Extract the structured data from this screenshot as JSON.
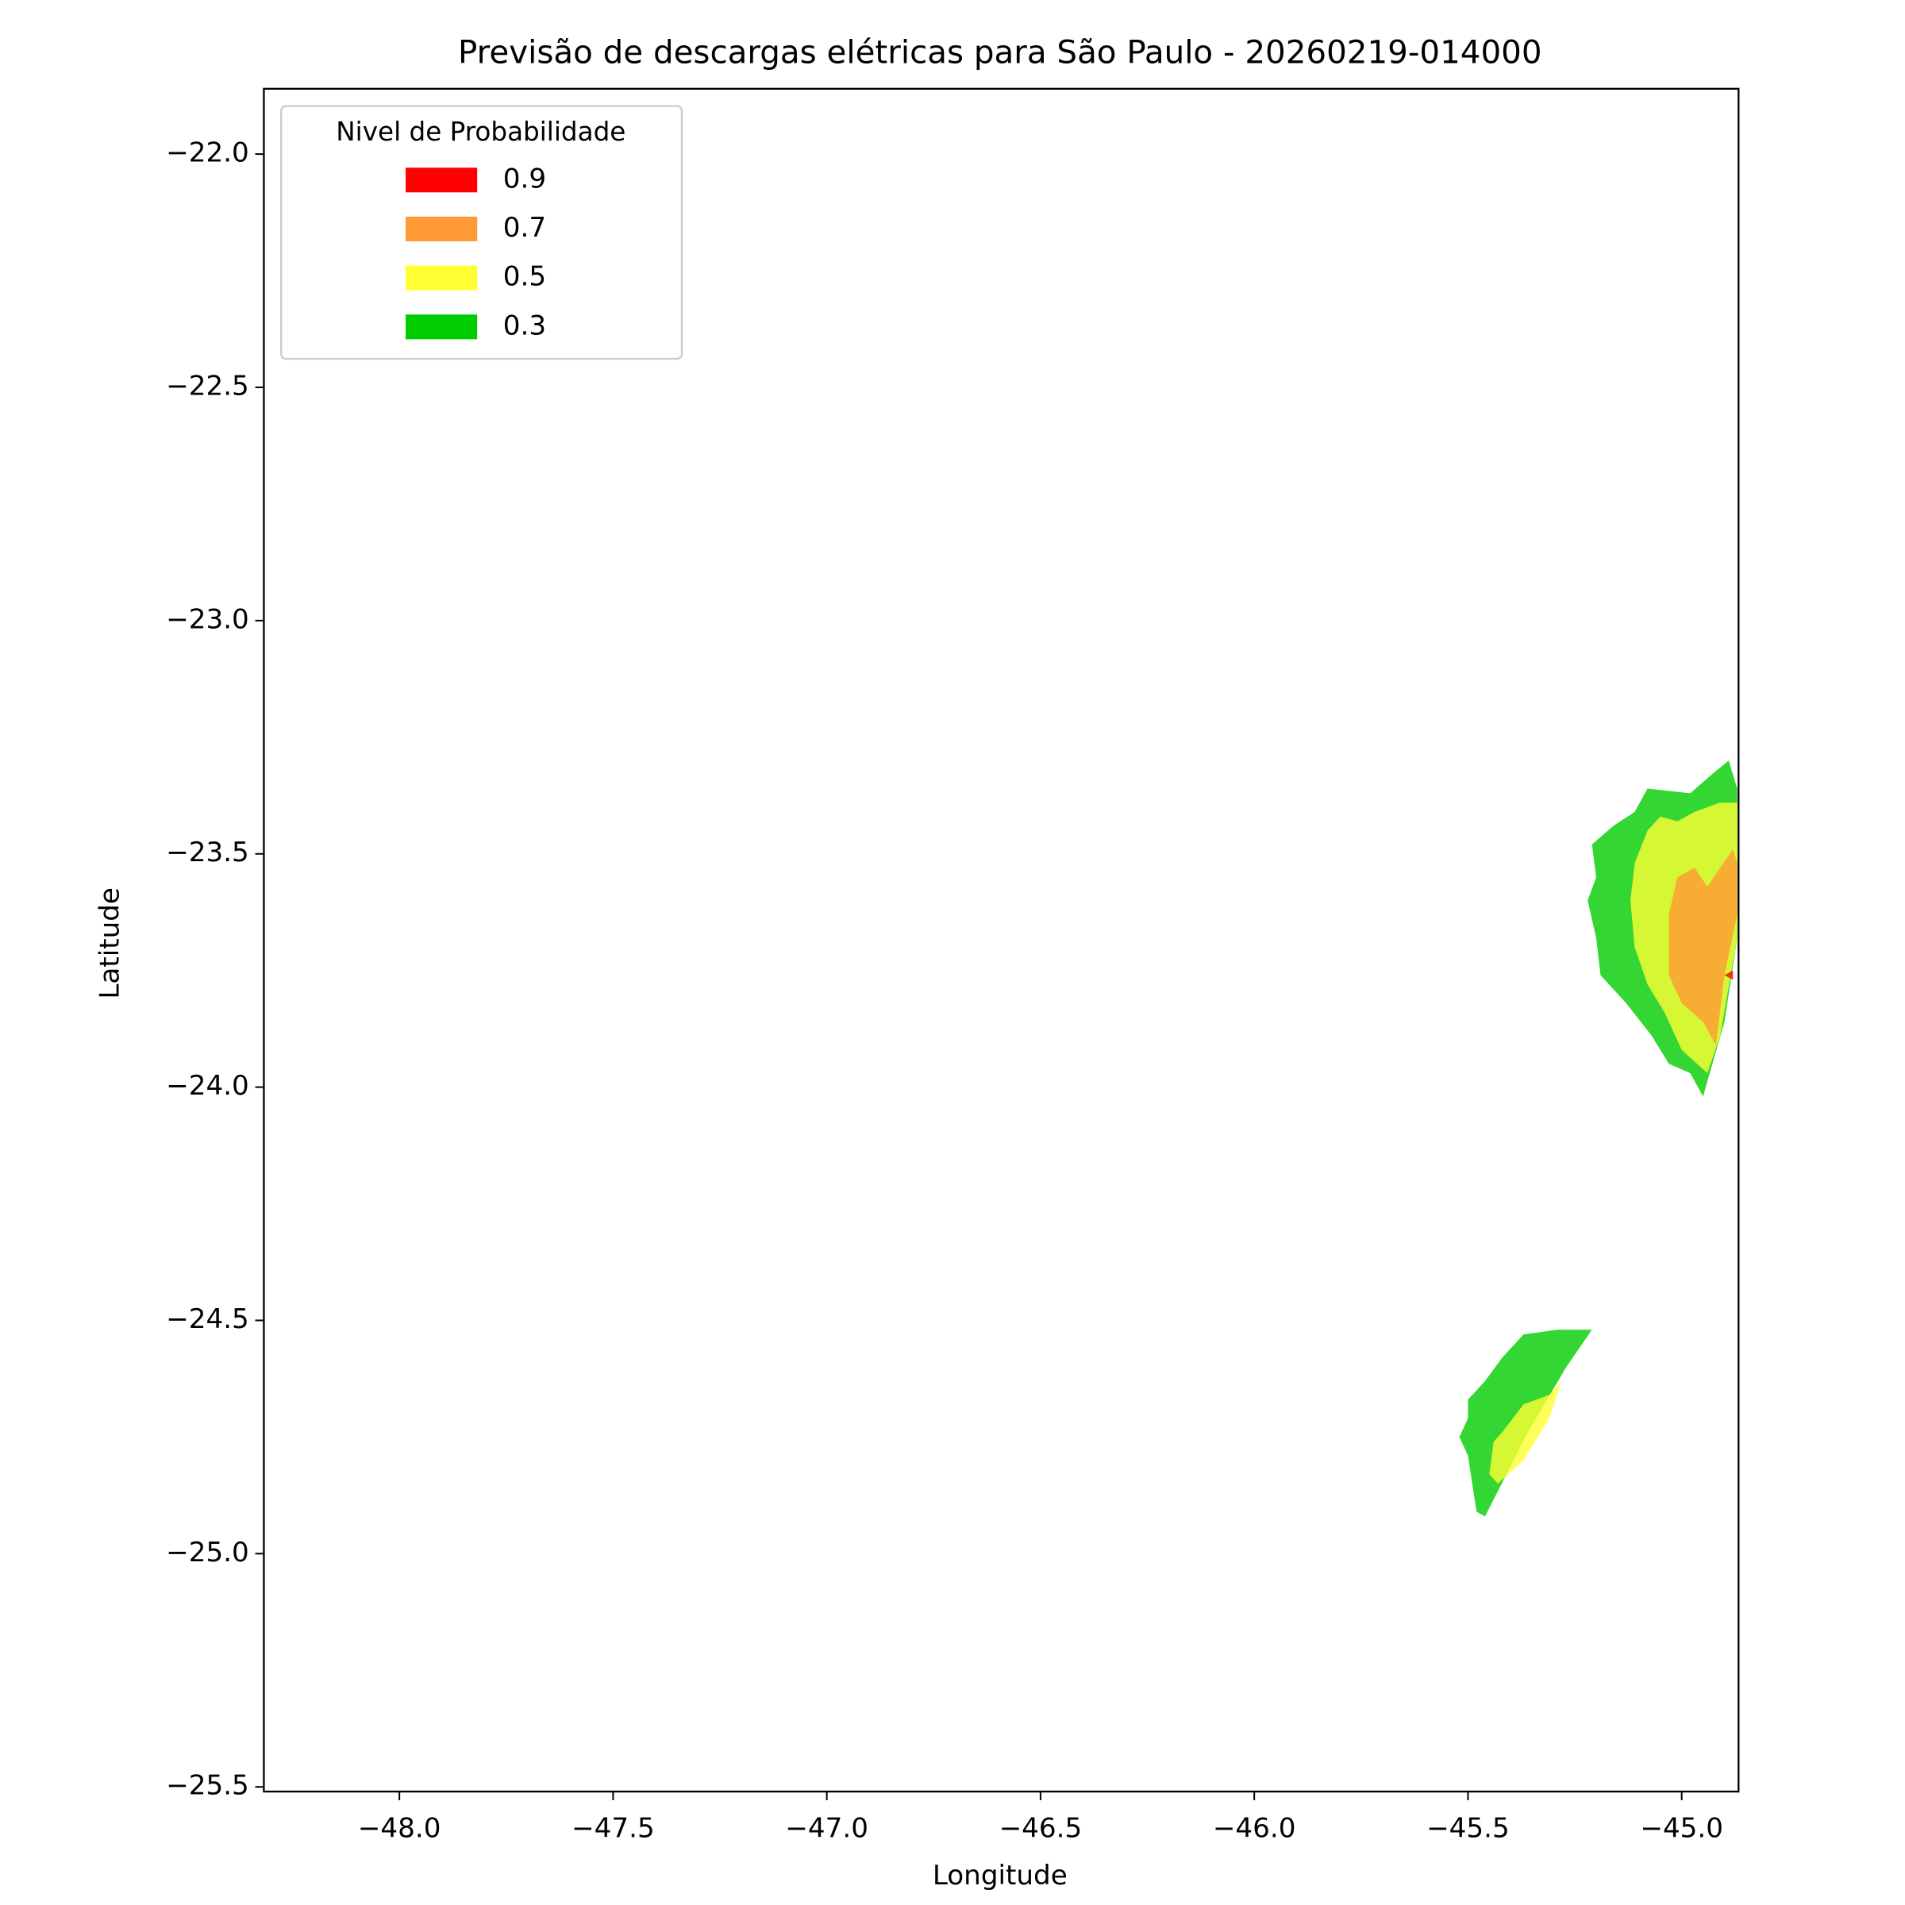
{
  "chart_data": {
    "type": "contour",
    "title": "Previsão de descargas elétricas para São Paulo - 20260219-014000",
    "xlabel": "Longitude",
    "ylabel": "Latitude",
    "xlim": [
      -48.317,
      -44.867
    ],
    "ylim": [
      -25.51,
      -21.86
    ],
    "xticks": [
      {
        "value": -48.0,
        "label": "−48.0"
      },
      {
        "value": -47.5,
        "label": "−47.5"
      },
      {
        "value": -47.0,
        "label": "−47.0"
      },
      {
        "value": -46.5,
        "label": "−46.5"
      },
      {
        "value": -46.0,
        "label": "−46.0"
      },
      {
        "value": -45.5,
        "label": "−45.5"
      },
      {
        "value": -45.0,
        "label": "−45.0"
      }
    ],
    "yticks": [
      {
        "value": -22.0,
        "label": "−22.0"
      },
      {
        "value": -22.5,
        "label": "−22.5"
      },
      {
        "value": -23.0,
        "label": "−23.0"
      },
      {
        "value": -23.5,
        "label": "−23.5"
      },
      {
        "value": -24.0,
        "label": "−24.0"
      },
      {
        "value": -24.5,
        "label": "−24.5"
      },
      {
        "value": -25.0,
        "label": "−25.0"
      },
      {
        "value": -25.5,
        "label": "−25.5"
      }
    ],
    "legend_title": "Nivel de Probabilidade",
    "legend": "upper left",
    "alpha": 0.8,
    "series": [
      {
        "name": "0.9",
        "color": "#ff0000",
        "polygons": [
          [
            [
              -44.9,
              -23.76
            ],
            [
              -44.88,
              -23.75
            ],
            [
              -44.88,
              -23.77
            ]
          ]
        ]
      },
      {
        "name": "0.7",
        "color": "#ff9933",
        "polygons": [
          [
            [
              -45.03,
              -23.63
            ],
            [
              -45.01,
              -23.55
            ],
            [
              -44.97,
              -23.53
            ],
            [
              -44.94,
              -23.57
            ],
            [
              -44.91,
              -23.53
            ],
            [
              -44.88,
              -23.49
            ],
            [
              -44.87,
              -23.52
            ],
            [
              -44.87,
              -23.63
            ],
            [
              -44.9,
              -23.76
            ],
            [
              -44.92,
              -23.91
            ],
            [
              -44.95,
              -23.86
            ],
            [
              -45.0,
              -23.82
            ],
            [
              -45.03,
              -23.76
            ],
            [
              -45.03,
              -23.68
            ]
          ]
        ]
      },
      {
        "name": "0.5",
        "color": "#ffff33",
        "polygons": [
          [
            [
              -45.11,
              -23.52
            ],
            [
              -45.08,
              -23.45
            ],
            [
              -45.05,
              -23.42
            ],
            [
              -45.01,
              -23.43
            ],
            [
              -44.97,
              -23.41
            ],
            [
              -44.91,
              -23.39
            ],
            [
              -44.87,
              -23.39
            ],
            [
              -44.87,
              -23.68
            ],
            [
              -44.91,
              -23.89
            ],
            [
              -44.94,
              -23.97
            ],
            [
              -45.0,
              -23.92
            ],
            [
              -45.04,
              -23.84
            ],
            [
              -45.08,
              -23.78
            ],
            [
              -45.11,
              -23.7
            ],
            [
              -45.12,
              -23.6
            ]
          ],
          [
            [
              -45.42,
              -24.74
            ],
            [
              -45.37,
              -24.68
            ],
            [
              -45.31,
              -24.66
            ],
            [
              -45.28,
              -24.63
            ],
            [
              -45.31,
              -24.71
            ],
            [
              -45.37,
              -24.8
            ],
            [
              -45.43,
              -24.85
            ],
            [
              -45.45,
              -24.83
            ],
            [
              -45.44,
              -24.76
            ]
          ]
        ]
      },
      {
        "name": "0.3",
        "color": "#00cc00",
        "polygons": [
          [
            [
              -45.21,
              -23.48
            ],
            [
              -45.16,
              -23.44
            ],
            [
              -45.11,
              -23.41
            ],
            [
              -45.08,
              -23.36
            ],
            [
              -44.98,
              -23.37
            ],
            [
              -44.93,
              -23.33
            ],
            [
              -44.89,
              -23.3
            ],
            [
              -44.87,
              -23.36
            ],
            [
              -44.87,
              -23.68
            ],
            [
              -44.9,
              -23.86
            ],
            [
              -44.95,
              -24.02
            ],
            [
              -44.98,
              -23.97
            ],
            [
              -45.03,
              -23.95
            ],
            [
              -45.07,
              -23.89
            ],
            [
              -45.13,
              -23.82
            ],
            [
              -45.19,
              -23.76
            ],
            [
              -45.2,
              -23.68
            ],
            [
              -45.22,
              -23.6
            ],
            [
              -45.2,
              -23.55
            ]
          ],
          [
            [
              -45.5,
              -24.67
            ],
            [
              -45.46,
              -24.63
            ],
            [
              -45.42,
              -24.58
            ],
            [
              -45.37,
              -24.53
            ],
            [
              -45.29,
              -24.52
            ],
            [
              -45.21,
              -24.52
            ],
            [
              -45.27,
              -24.6
            ],
            [
              -45.36,
              -24.74
            ],
            [
              -45.46,
              -24.92
            ],
            [
              -45.48,
              -24.91
            ],
            [
              -45.5,
              -24.79
            ],
            [
              -45.52,
              -24.75
            ],
            [
              -45.5,
              -24.71
            ]
          ]
        ]
      }
    ]
  }
}
